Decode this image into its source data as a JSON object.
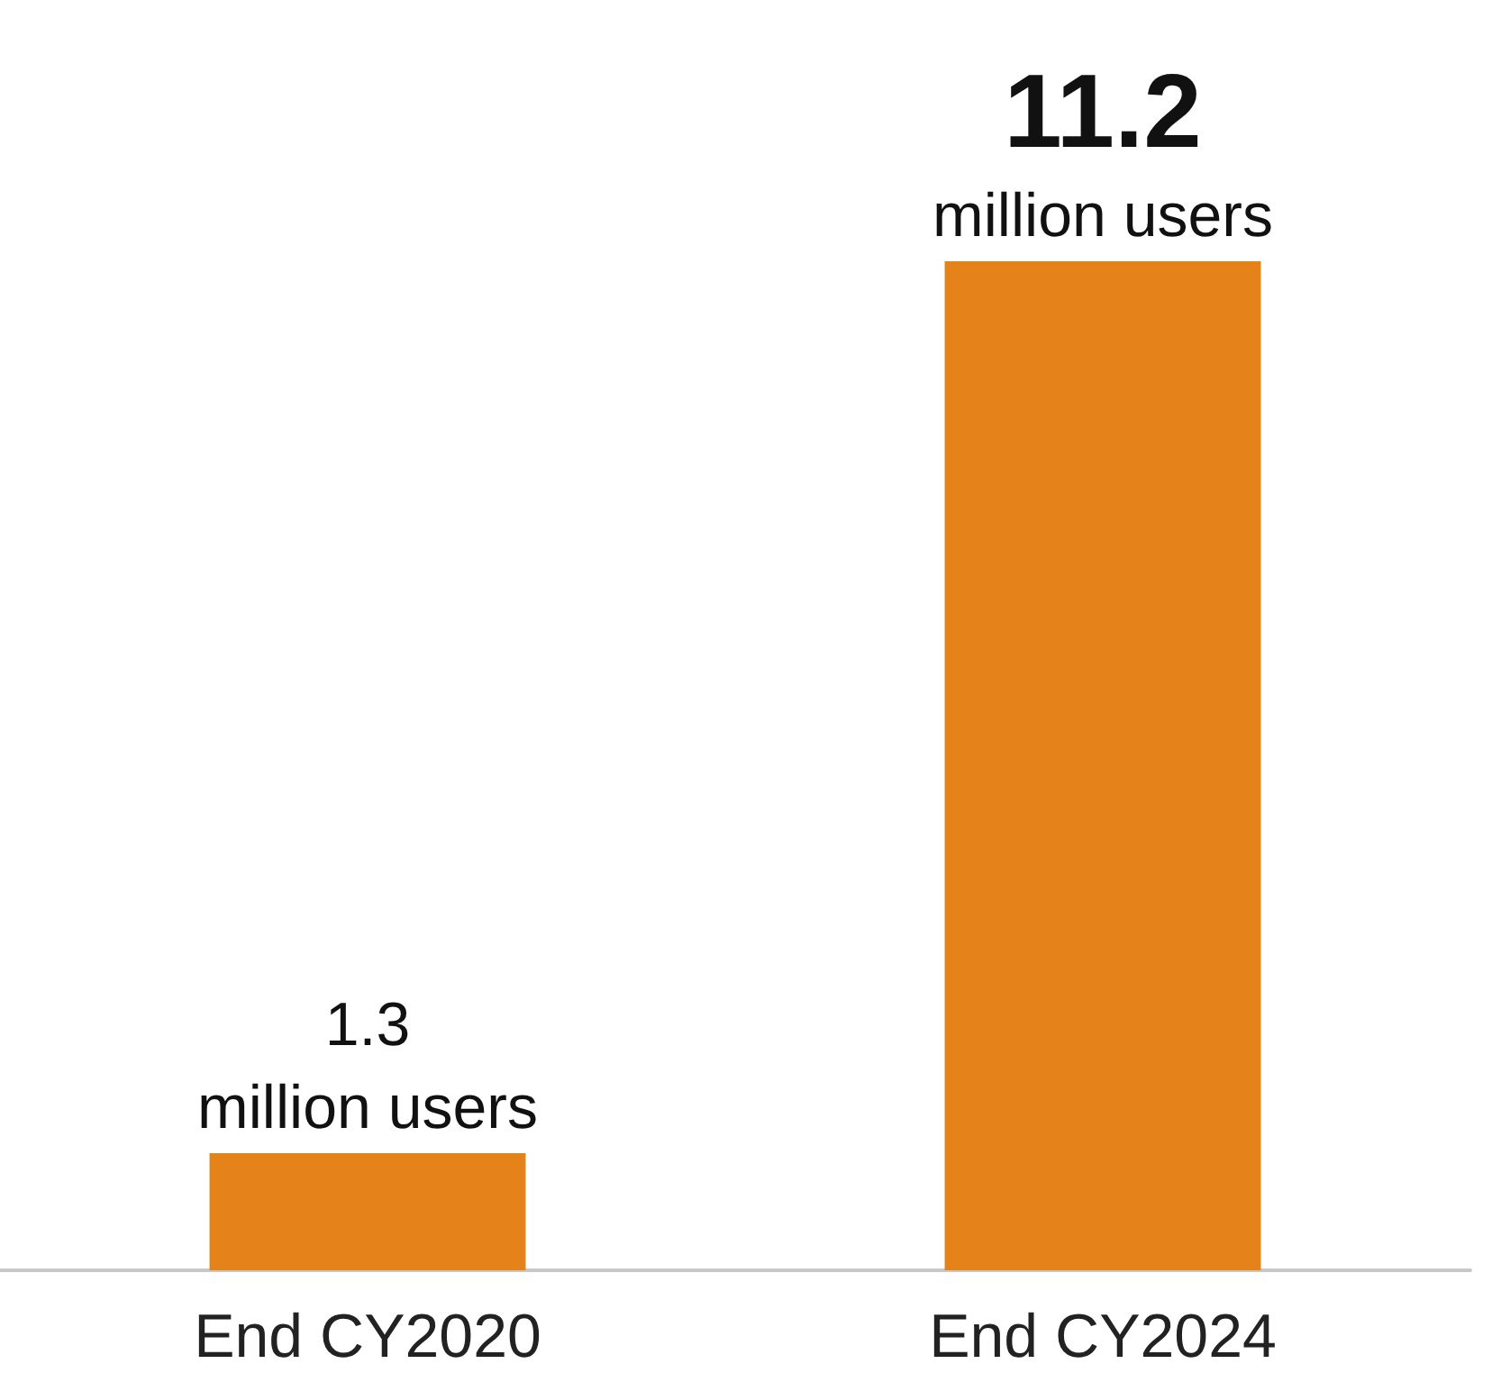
{
  "chart_data": {
    "type": "bar",
    "categories": [
      "End CY2020",
      "End CY2024"
    ],
    "values": [
      1.3,
      11.2
    ],
    "data_labels": true,
    "annotations": [
      {
        "text": "million users",
        "x": "End CY2020",
        "y": 1.3
      },
      {
        "text": "million users",
        "x": "End CY2024",
        "y": 11.2
      }
    ],
    "color": "#e6821a",
    "grid": false
  }
}
